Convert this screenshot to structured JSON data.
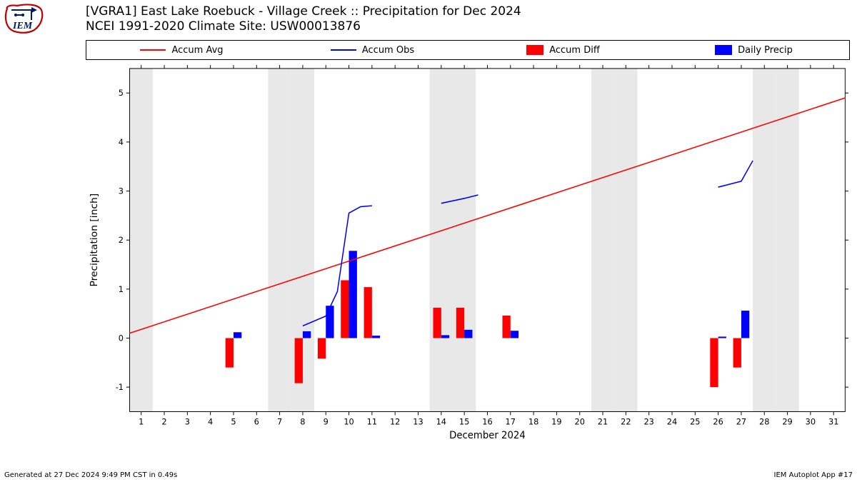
{
  "title_line1": "[VGRA1] East Lake Roebuck - Village Creek :: Precipitation for Dec 2024",
  "title_line2": "NCEI 1991-2020 Climate Site: USW00013876",
  "legend": {
    "accum_avg": "Accum Avg",
    "accum_obs": "Accum Obs",
    "accum_diff": "Accum Diff",
    "daily_precip": "Daily Precip"
  },
  "footer_left": "Generated at 27 Dec 2024 9:49 PM CST in 0.49s",
  "footer_right": "IEM Autoplot App #17",
  "colors": {
    "avg_line": "#ff0000",
    "obs_line": "#0000ff",
    "diff_bar": "#ff0000",
    "precip_bar": "#0000ff",
    "weekend_band": "#e8e8e8",
    "axis": "#000000",
    "plot_bg": "#ffffff"
  },
  "chart": {
    "type": "combo-bar-line",
    "xlabel": "December 2024",
    "ylabel": "Precipitation [inch]",
    "xlim": [
      0.5,
      31.5
    ],
    "ylim": [
      -1.5,
      5.5
    ],
    "yticks": [
      -1,
      0,
      1,
      2,
      3,
      4,
      5
    ],
    "xticks": [
      1,
      2,
      3,
      4,
      5,
      6,
      7,
      8,
      9,
      10,
      11,
      12,
      13,
      14,
      15,
      16,
      17,
      18,
      19,
      20,
      21,
      22,
      23,
      24,
      25,
      26,
      27,
      28,
      29,
      30,
      31
    ],
    "weekend_days": [
      1,
      7,
      8,
      14,
      15,
      21,
      22,
      28,
      29
    ],
    "bar_half_width": 0.35,
    "accum_avg": {
      "x": [
        0.5,
        31.5
      ],
      "y": [
        0.1,
        4.9
      ],
      "line_width": 1.6
    },
    "accum_obs_segments": [
      {
        "x": [
          8,
          9,
          9.5,
          10,
          10.5,
          11
        ],
        "y": [
          0.25,
          0.45,
          0.95,
          2.55,
          2.68,
          2.7
        ]
      },
      {
        "x": [
          14,
          15,
          15.6
        ],
        "y": [
          2.75,
          2.85,
          2.92
        ]
      },
      {
        "x": [
          26,
          27,
          27.5
        ],
        "y": [
          3.08,
          3.2,
          3.62
        ]
      }
    ],
    "obs_line_width": 1.6,
    "diff_bars": [
      {
        "x": 5,
        "y": -0.6
      },
      {
        "x": 8,
        "y": -0.92
      },
      {
        "x": 9,
        "y": -0.42
      },
      {
        "x": 10,
        "y": 1.18
      },
      {
        "x": 11,
        "y": 1.04
      },
      {
        "x": 14,
        "y": 0.62
      },
      {
        "x": 15,
        "y": 0.62
      },
      {
        "x": 17,
        "y": 0.46
      },
      {
        "x": 26,
        "y": -1.0
      },
      {
        "x": 27,
        "y": -0.6
      }
    ],
    "precip_bars": [
      {
        "x": 5,
        "y": 0.12
      },
      {
        "x": 8,
        "y": 0.14
      },
      {
        "x": 9,
        "y": 0.66
      },
      {
        "x": 10,
        "y": 1.78
      },
      {
        "x": 11,
        "y": 0.05
      },
      {
        "x": 14,
        "y": 0.06
      },
      {
        "x": 15,
        "y": 0.17
      },
      {
        "x": 17,
        "y": 0.15
      },
      {
        "x": 26,
        "y": 0.03
      },
      {
        "x": 27,
        "y": 0.56
      }
    ]
  }
}
